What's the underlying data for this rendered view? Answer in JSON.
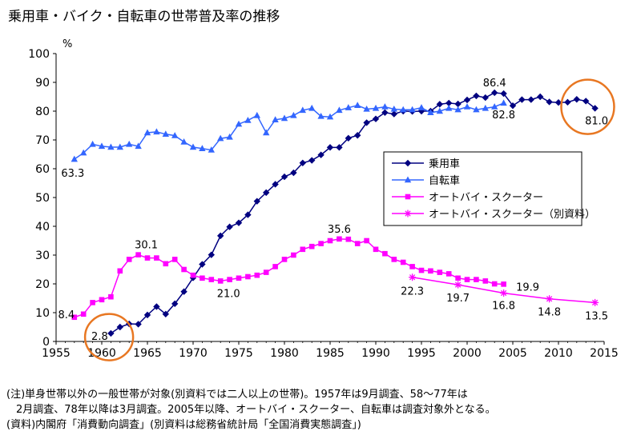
{
  "title": "乗用車・バイク・自転車の世帯普及率の推移",
  "notes": [
    "(注)単身世帯以外の一般世帯が対象(別資料では二人以上の世帯)。1957年は9月調査、58〜77年は",
    "2月調査、78年以降は3月調査。2005年以降、オートバイ・スクーター、自転車は調査対象外となる。",
    "(資料)内閣府「消費動向調査」(別資料は総務省統計局「全国消費実態調査」)"
  ],
  "colors": {
    "car": "#000080",
    "bicycle": "#3366ff",
    "moto": "#ff00ff",
    "moto2": "#ff00ff",
    "highlight": "#e87722"
  },
  "chart_data": {
    "type": "line",
    "title": "乗用車・バイク・自転車の世帯普及率の推移",
    "ylabel": "%",
    "xlim": [
      1955,
      2015
    ],
    "ylim": [
      0,
      100
    ],
    "xticks": [
      1955,
      1960,
      1965,
      1970,
      1975,
      1980,
      1985,
      1990,
      1995,
      2000,
      2005,
      2010,
      2015
    ],
    "yticks": [
      0,
      10,
      20,
      30,
      40,
      50,
      60,
      70,
      80,
      90,
      100
    ],
    "legend_position": "right",
    "series": [
      {
        "name": "乗用車",
        "marker": "diamond",
        "x": [
          1961,
          1962,
          1963,
          1964,
          1965,
          1966,
          1967,
          1968,
          1969,
          1970,
          1971,
          1972,
          1973,
          1974,
          1975,
          1976,
          1977,
          1978,
          1979,
          1980,
          1981,
          1982,
          1983,
          1984,
          1985,
          1986,
          1987,
          1988,
          1989,
          1990,
          1991,
          1992,
          1993,
          1994,
          1995,
          1996,
          1997,
          1998,
          1999,
          2000,
          2001,
          2002,
          2003,
          2004,
          2005,
          2006,
          2007,
          2008,
          2009,
          2010,
          2011,
          2012,
          2013,
          2014
        ],
        "y": [
          2.8,
          5.0,
          6.1,
          6.0,
          9.2,
          12.1,
          9.5,
          13.1,
          17.3,
          22.1,
          26.8,
          30.1,
          36.7,
          39.8,
          41.2,
          44.0,
          48.7,
          51.7,
          54.6,
          57.2,
          58.6,
          62.0,
          62.9,
          64.8,
          67.4,
          67.4,
          70.6,
          71.6,
          76.0,
          77.3,
          79.5,
          79.0,
          80.0,
          79.9,
          80.0,
          80.0,
          82.4,
          82.8,
          82.5,
          83.9,
          85.3,
          84.7,
          86.4,
          86.1,
          81.9,
          84.0,
          84.0,
          85.0,
          83.2,
          83.0,
          83.1,
          84.1,
          83.5,
          81.0
        ]
      },
      {
        "name": "自転車",
        "marker": "triangle",
        "x": [
          1957,
          1958,
          1959,
          1960,
          1961,
          1962,
          1963,
          1964,
          1965,
          1966,
          1967,
          1968,
          1969,
          1970,
          1971,
          1972,
          1973,
          1974,
          1975,
          1976,
          1977,
          1978,
          1979,
          1980,
          1981,
          1982,
          1983,
          1984,
          1985,
          1986,
          1987,
          1988,
          1989,
          1990,
          1991,
          1992,
          1993,
          1994,
          1995,
          1996,
          1997,
          1998,
          1999,
          2000,
          2001,
          2002,
          2003,
          2004
        ],
        "y": [
          63.3,
          65.5,
          68.5,
          67.8,
          67.5,
          67.5,
          68.5,
          67.8,
          72.5,
          72.8,
          72.0,
          71.5,
          69.3,
          67.5,
          67.0,
          66.5,
          70.5,
          71.0,
          75.5,
          76.8,
          78.5,
          72.5,
          77.0,
          77.5,
          78.5,
          80.3,
          81.0,
          78.2,
          78.0,
          80.3,
          81.2,
          82.0,
          80.7,
          81.0,
          81.5,
          80.7,
          80.5,
          80.5,
          81.2,
          79.5,
          80.0,
          81.0,
          80.5,
          81.5,
          80.5,
          81.0,
          81.5,
          82.8
        ]
      },
      {
        "name": "オートバイ・スクーター",
        "marker": "square",
        "x": [
          1957,
          1958,
          1959,
          1960,
          1961,
          1962,
          1963,
          1964,
          1965,
          1966,
          1967,
          1968,
          1969,
          1970,
          1971,
          1972,
          1973,
          1974,
          1975,
          1976,
          1977,
          1978,
          1979,
          1980,
          1981,
          1982,
          1983,
          1984,
          1985,
          1986,
          1987,
          1988,
          1989,
          1990,
          1991,
          1992,
          1993,
          1994,
          1995,
          1996,
          1997,
          1998,
          1999,
          2000,
          2001,
          2002,
          2003,
          2004
        ],
        "y": [
          8.4,
          9.5,
          13.5,
          14.5,
          15.5,
          24.5,
          28.5,
          30.1,
          29.0,
          29.0,
          27.0,
          28.5,
          25.0,
          23.0,
          22.0,
          21.5,
          21.0,
          21.5,
          22.0,
          22.5,
          23.0,
          24.0,
          26.0,
          28.5,
          30.0,
          32.0,
          33.0,
          34.0,
          35.0,
          35.6,
          35.5,
          34.0,
          35.0,
          32.0,
          30.5,
          28.5,
          27.5,
          26.0,
          24.7,
          24.5,
          24.0,
          23.5,
          22.0,
          21.5,
          21.5,
          21.0,
          20.0,
          19.9
        ]
      },
      {
        "name": "オートバイ・スクーター（別資料）",
        "marker": "star",
        "x": [
          1994,
          1999,
          2004,
          2009,
          2014
        ],
        "y": [
          22.3,
          19.7,
          16.8,
          14.8,
          13.5
        ]
      }
    ],
    "annotations": [
      {
        "text": "86.4",
        "x": 2003,
        "y": 86.4
      },
      {
        "text": "82.8",
        "x": 2004,
        "y": 82.8
      },
      {
        "text": "81.0",
        "x": 2014,
        "y": 81.0
      },
      {
        "text": "63.3",
        "x": 1957,
        "y": 63.3
      },
      {
        "text": "2.8",
        "x": 1961,
        "y": 2.8
      },
      {
        "text": "8.4",
        "x": 1957,
        "y": 8.4
      },
      {
        "text": "30.1",
        "x": 1964,
        "y": 30.1
      },
      {
        "text": "21.0",
        "x": 1973,
        "y": 21.0
      },
      {
        "text": "35.6",
        "x": 1986,
        "y": 35.6
      },
      {
        "text": "22.3",
        "x": 1994,
        "y": 22.3
      },
      {
        "text": "19.9",
        "x": 2004,
        "y": 19.9
      },
      {
        "text": "19.7",
        "x": 1999,
        "y": 19.7
      },
      {
        "text": "16.8",
        "x": 2004,
        "y": 16.8
      },
      {
        "text": "14.8",
        "x": 2009,
        "y": 14.8
      },
      {
        "text": "13.5",
        "x": 2014,
        "y": 13.5
      }
    ]
  }
}
